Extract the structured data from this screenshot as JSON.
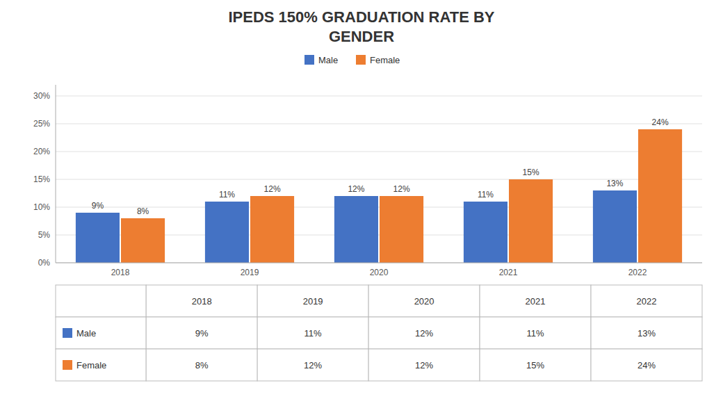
{
  "chart_data": {
    "type": "bar",
    "title": "IPEDS 150% GRADUATION RATE BY\nGENDER",
    "categories": [
      "2018",
      "2019",
      "2020",
      "2021",
      "2022"
    ],
    "series": [
      {
        "name": "Male",
        "color": "#4472C4",
        "values": [
          9,
          11,
          12,
          11,
          13
        ],
        "value_labels": [
          "9%",
          "11%",
          "12%",
          "11%",
          "13%"
        ]
      },
      {
        "name": "Female",
        "color": "#ED7D31",
        "values": [
          8,
          12,
          12,
          15,
          24
        ],
        "value_labels": [
          "8%",
          "12%",
          "12%",
          "15%",
          "24%"
        ]
      }
    ],
    "ylim": [
      0,
      32
    ],
    "yticks": [
      {
        "value": 0,
        "label": "0%"
      },
      {
        "value": 5,
        "label": "5%"
      },
      {
        "value": 10,
        "label": "10%"
      },
      {
        "value": 15,
        "label": "15%"
      },
      {
        "value": 20,
        "label": "20%"
      },
      {
        "value": 25,
        "label": "25%"
      },
      {
        "value": 30,
        "label": "30%"
      }
    ],
    "grid": true,
    "legend": "top",
    "data_labels": true
  }
}
